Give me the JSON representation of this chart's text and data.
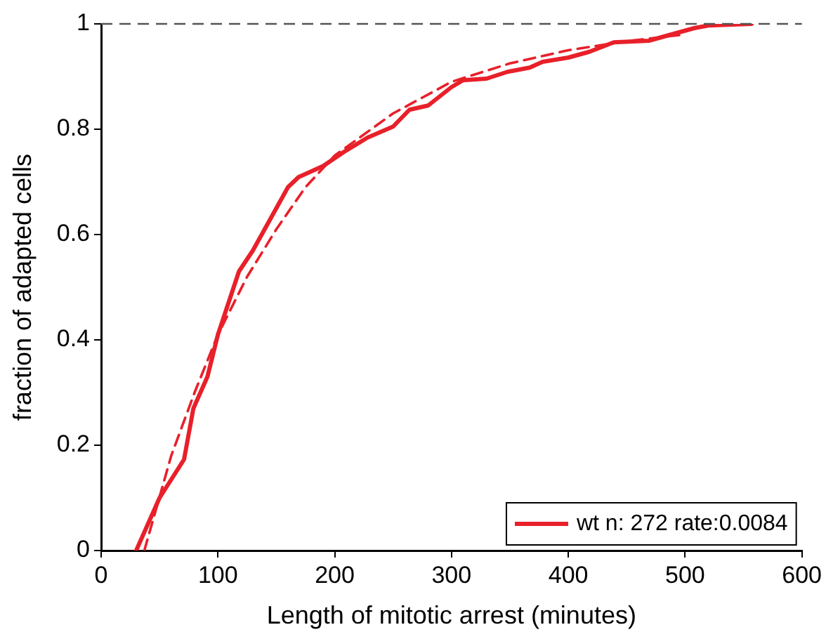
{
  "chart_data": {
    "type": "line",
    "xlabel": "Length of mitotic arrest (minutes)",
    "ylabel": "fraction of adapted cells",
    "xlim": [
      0,
      600
    ],
    "xticks": [
      0,
      100,
      200,
      300,
      400,
      500,
      600
    ],
    "ylim": [
      0,
      1
    ],
    "yticks": [
      0,
      0.2,
      0.4,
      0.6,
      0.8,
      1
    ],
    "grid": false,
    "legend": "bottom right",
    "marker": "none",
    "series": [
      {
        "name": "wt n: 272 rate:0.0084",
        "color": "#e8202a",
        "line_style": "solid",
        "x": [
          30,
          50,
          71,
          79,
          91,
          100,
          118,
          130,
          145,
          160,
          169,
          190,
          208,
          228,
          250,
          264,
          280,
          300,
          310,
          330,
          348,
          367,
          378,
          400,
          418,
          439,
          469,
          490,
          508,
          520,
          557
        ],
        "values": [
          0,
          0.1,
          0.173,
          0.27,
          0.33,
          0.41,
          0.53,
          0.57,
          0.63,
          0.69,
          0.709,
          0.73,
          0.757,
          0.784,
          0.805,
          0.837,
          0.845,
          0.88,
          0.893,
          0.896,
          0.909,
          0.917,
          0.928,
          0.936,
          0.947,
          0.965,
          0.968,
          0.981,
          0.992,
          0.997,
          1
        ]
      },
      {
        "color": "#e8202a",
        "line_style": "dashed",
        "x": [
          37,
          60,
          80,
          100,
          125,
          150,
          175,
          200,
          225,
          250,
          275,
          300,
          350,
          400,
          450,
          496
        ],
        "values": [
          0,
          0.18,
          0.3,
          0.41,
          0.52,
          0.61,
          0.69,
          0.75,
          0.79,
          0.83,
          0.86,
          0.89,
          0.925,
          0.95,
          0.967,
          0.979
        ]
      }
    ],
    "ref_lines": [
      {
        "axis": "y",
        "value": 1,
        "color": "#555555",
        "line_style": "dashed"
      }
    ]
  }
}
